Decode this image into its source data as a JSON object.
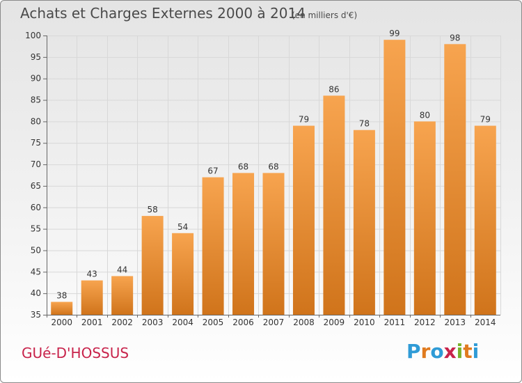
{
  "header": {
    "title": "Achats et Charges Externes 2000 à 2014",
    "subtitle": "(en milliers d'€)"
  },
  "footer": {
    "commune": "GUé-D'HOSSUS",
    "logo_text": "Proxiti",
    "logo_colors": [
      "#2f9bd6",
      "#e07b1f",
      "#2f9bd6",
      "#c8234b",
      "#78b22b",
      "#e07b1f",
      "#2f9bd6"
    ]
  },
  "colors": {
    "bar_top": "#f7a44f",
    "bar_bottom": "#d0741b",
    "grid": "#d8d8d8",
    "axis": "#666666"
  },
  "chart_data": {
    "type": "bar",
    "title": "Achats et Charges Externes 2000 à 2014",
    "subtitle": "(en milliers d'€)",
    "categories": [
      "2000",
      "2001",
      "2002",
      "2003",
      "2004",
      "2005",
      "2006",
      "2007",
      "2008",
      "2009",
      "2010",
      "2011",
      "2012",
      "2013",
      "2014"
    ],
    "values": [
      38,
      43,
      44,
      58,
      54,
      67,
      68,
      68,
      79,
      86,
      78,
      99,
      80,
      98,
      79
    ],
    "ylim": [
      35,
      100
    ],
    "yticks": [
      35,
      40,
      45,
      50,
      55,
      60,
      65,
      70,
      75,
      80,
      85,
      90,
      95,
      100
    ],
    "grid": true,
    "data_labels": true
  }
}
